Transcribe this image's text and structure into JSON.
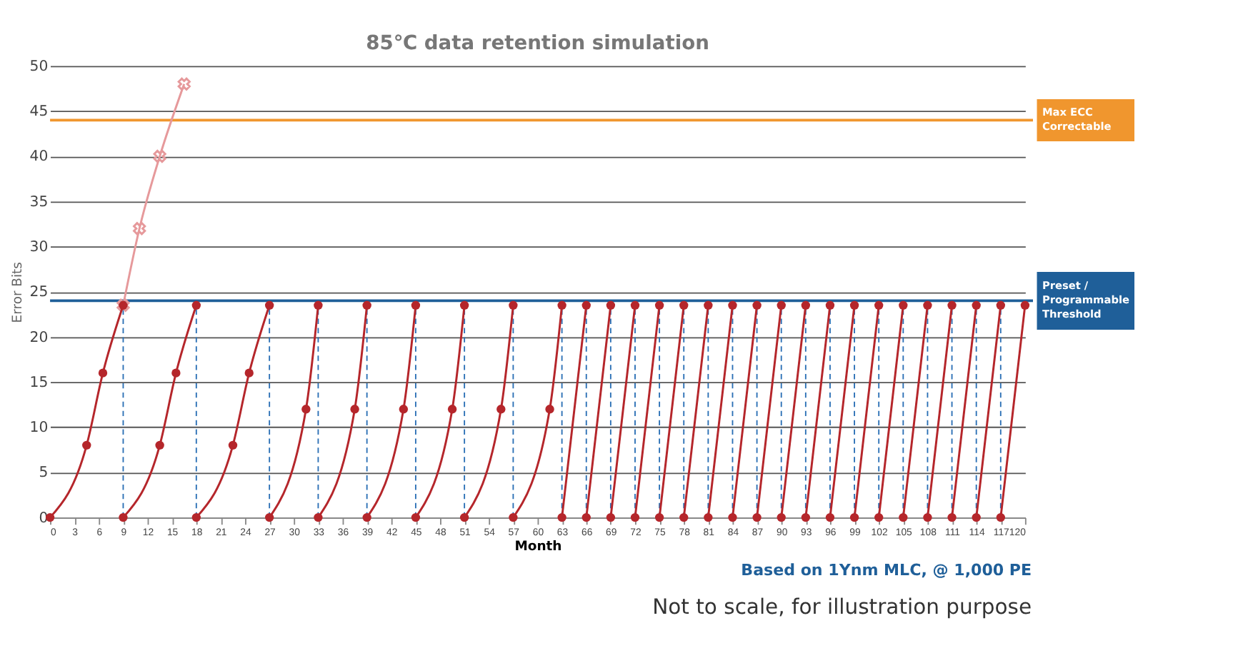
{
  "chart_data": {
    "type": "line",
    "title": "85℃ data retention simulation",
    "xlabel": "Month",
    "ylabel": "Error Bits",
    "xlim": [
      0,
      120
    ],
    "xticks": [
      0,
      3,
      6,
      9,
      12,
      15,
      18,
      21,
      24,
      27,
      30,
      33,
      36,
      39,
      42,
      45,
      48,
      51,
      54,
      57,
      60,
      63,
      66,
      69,
      72,
      75,
      78,
      81,
      84,
      87,
      90,
      93,
      96,
      99,
      102,
      105,
      108,
      111,
      114,
      117,
      120
    ],
    "ylim": [
      0,
      50
    ],
    "yticks": [
      0,
      5,
      10,
      15,
      20,
      25,
      30,
      35,
      40,
      45,
      50
    ],
    "grid": "y",
    "marker": "circle",
    "line_style": "solid",
    "series": [
      {
        "color": "#e6999b",
        "marker": "cross",
        "x": [
          9,
          11,
          13.5,
          16.5
        ],
        "values": [
          23.5,
          32,
          40,
          48
        ]
      },
      {
        "color": "#b5262b",
        "x": [
          0,
          4.5,
          6.5,
          9
        ],
        "values": [
          0,
          8,
          16,
          23.5
        ]
      },
      {
        "color": "#b5262b",
        "x": [
          9,
          13.5,
          15.5,
          18
        ],
        "values": [
          0,
          8,
          16,
          23.5
        ]
      },
      {
        "color": "#b5262b",
        "x": [
          18,
          22.5,
          24.5,
          27
        ],
        "values": [
          0,
          8,
          16,
          23.5
        ]
      },
      {
        "color": "#b5262b",
        "x": [
          27,
          31.5,
          33
        ],
        "values": [
          0,
          12,
          23.5
        ]
      },
      {
        "color": "#b5262b",
        "x": [
          33,
          37.5,
          39
        ],
        "values": [
          0,
          12,
          23.5
        ]
      },
      {
        "color": "#b5262b",
        "x": [
          39,
          43.5,
          45
        ],
        "values": [
          0,
          12,
          23.5
        ]
      },
      {
        "color": "#b5262b",
        "x": [
          45,
          49.5,
          51
        ],
        "values": [
          0,
          12,
          23.5
        ]
      },
      {
        "color": "#b5262b",
        "x": [
          51,
          55.5,
          57
        ],
        "values": [
          0,
          12,
          23.5
        ]
      },
      {
        "color": "#b5262b",
        "x": [
          57,
          61.5,
          63
        ],
        "values": [
          0,
          12,
          23.5
        ]
      },
      {
        "color": "#b5262b",
        "x": [
          63,
          66
        ],
        "values": [
          0,
          23.5
        ]
      },
      {
        "color": "#b5262b",
        "x": [
          66,
          69
        ],
        "values": [
          0,
          23.5
        ]
      },
      {
        "color": "#b5262b",
        "x": [
          69,
          72
        ],
        "values": [
          0,
          23.5
        ]
      },
      {
        "color": "#b5262b",
        "x": [
          72,
          75
        ],
        "values": [
          0,
          23.5
        ]
      },
      {
        "color": "#b5262b",
        "x": [
          75,
          78
        ],
        "values": [
          0,
          23.5
        ]
      },
      {
        "color": "#b5262b",
        "x": [
          78,
          81
        ],
        "values": [
          0,
          23.5
        ]
      },
      {
        "color": "#b5262b",
        "x": [
          81,
          84
        ],
        "values": [
          0,
          23.5
        ]
      },
      {
        "color": "#b5262b",
        "x": [
          84,
          87
        ],
        "values": [
          0,
          23.5
        ]
      },
      {
        "color": "#b5262b",
        "x": [
          87,
          90
        ],
        "values": [
          0,
          23.5
        ]
      },
      {
        "color": "#b5262b",
        "x": [
          90,
          93
        ],
        "values": [
          0,
          23.5
        ]
      },
      {
        "color": "#b5262b",
        "x": [
          93,
          96
        ],
        "values": [
          0,
          23.5
        ]
      },
      {
        "color": "#b5262b",
        "x": [
          96,
          99
        ],
        "values": [
          0,
          23.5
        ]
      },
      {
        "color": "#b5262b",
        "x": [
          99,
          102
        ],
        "values": [
          0,
          23.5
        ]
      },
      {
        "color": "#b5262b",
        "x": [
          102,
          105
        ],
        "values": [
          0,
          23.5
        ]
      },
      {
        "color": "#b5262b",
        "x": [
          105,
          108
        ],
        "values": [
          0,
          23.5
        ]
      },
      {
        "color": "#b5262b",
        "x": [
          108,
          111
        ],
        "values": [
          0,
          23.5
        ]
      },
      {
        "color": "#b5262b",
        "x": [
          111,
          114
        ],
        "values": [
          0,
          23.5
        ]
      },
      {
        "color": "#b5262b",
        "x": [
          114,
          117
        ],
        "values": [
          0,
          23.5
        ]
      },
      {
        "color": "#b5262b",
        "x": [
          117,
          120
        ],
        "values": [
          0,
          23.5
        ]
      }
    ],
    "ref_lines": [
      {
        "axis": "y",
        "value": 44,
        "label": "Max ECC\nCorrectable",
        "color": "#f0962e",
        "line_style": "solid"
      },
      {
        "axis": "y",
        "value": 24,
        "label": "Preset /\nProgrammable\nThreshold",
        "color": "#1f5f99",
        "line_style": "solid"
      },
      {
        "axis": "x",
        "value": 9,
        "color": "#2a6fb5",
        "line_style": "dashed"
      },
      {
        "axis": "x",
        "value": 18,
        "color": "#2a6fb5",
        "line_style": "dashed"
      },
      {
        "axis": "x",
        "value": 27,
        "color": "#2a6fb5",
        "line_style": "dashed"
      },
      {
        "axis": "x",
        "value": 33,
        "color": "#2a6fb5",
        "line_style": "dashed"
      },
      {
        "axis": "x",
        "value": 39,
        "color": "#2a6fb5",
        "line_style": "dashed"
      },
      {
        "axis": "x",
        "value": 45,
        "color": "#2a6fb5",
        "line_style": "dashed"
      },
      {
        "axis": "x",
        "value": 51,
        "color": "#2a6fb5",
        "line_style": "dashed"
      },
      {
        "axis": "x",
        "value": 57,
        "color": "#2a6fb5",
        "line_style": "dashed"
      },
      {
        "axis": "x",
        "value": 63,
        "color": "#2a6fb5",
        "line_style": "dashed"
      },
      {
        "axis": "x",
        "value": 66,
        "color": "#2a6fb5",
        "line_style": "dashed"
      },
      {
        "axis": "x",
        "value": 69,
        "color": "#2a6fb5",
        "line_style": "dashed"
      },
      {
        "axis": "x",
        "value": 72,
        "color": "#2a6fb5",
        "line_style": "dashed"
      },
      {
        "axis": "x",
        "value": 75,
        "color": "#2a6fb5",
        "line_style": "dashed"
      },
      {
        "axis": "x",
        "value": 78,
        "color": "#2a6fb5",
        "line_style": "dashed"
      },
      {
        "axis": "x",
        "value": 81,
        "color": "#2a6fb5",
        "line_style": "dashed"
      },
      {
        "axis": "x",
        "value": 84,
        "color": "#2a6fb5",
        "line_style": "dashed"
      },
      {
        "axis": "x",
        "value": 87,
        "color": "#2a6fb5",
        "line_style": "dashed"
      },
      {
        "axis": "x",
        "value": 90,
        "color": "#2a6fb5",
        "line_style": "dashed"
      },
      {
        "axis": "x",
        "value": 93,
        "color": "#2a6fb5",
        "line_style": "dashed"
      },
      {
        "axis": "x",
        "value": 96,
        "color": "#2a6fb5",
        "line_style": "dashed"
      },
      {
        "axis": "x",
        "value": 99,
        "color": "#2a6fb5",
        "line_style": "dashed"
      },
      {
        "axis": "x",
        "value": 102,
        "color": "#2a6fb5",
        "line_style": "dashed"
      },
      {
        "axis": "x",
        "value": 105,
        "color": "#2a6fb5",
        "line_style": "dashed"
      },
      {
        "axis": "x",
        "value": 108,
        "color": "#2a6fb5",
        "line_style": "dashed"
      },
      {
        "axis": "x",
        "value": 111,
        "color": "#2a6fb5",
        "line_style": "dashed"
      },
      {
        "axis": "x",
        "value": 114,
        "color": "#2a6fb5",
        "line_style": "dashed"
      },
      {
        "axis": "x",
        "value": 117,
        "color": "#2a6fb5",
        "line_style": "dashed"
      }
    ],
    "annotations": [
      "Based on 1Ynm MLC, @ 1,000 PE",
      "Not to scale, for illustration purpose"
    ]
  }
}
